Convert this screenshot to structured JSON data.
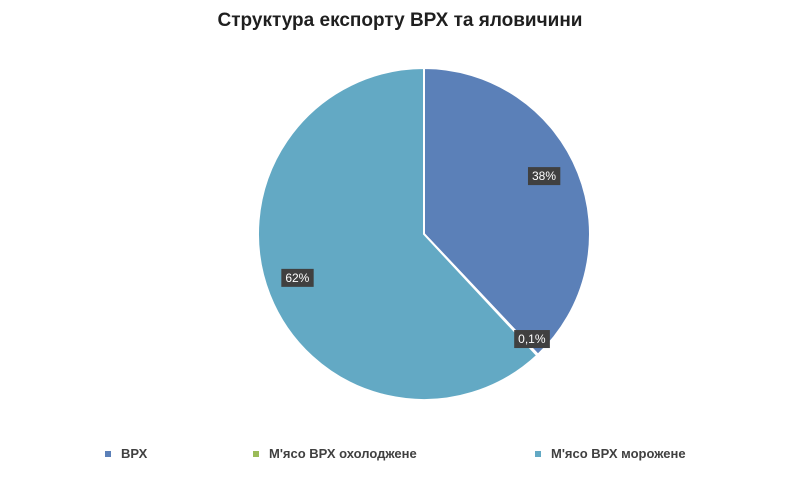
{
  "chart_data": {
    "type": "pie",
    "title": "Структура експорту ВРХ та яловичини",
    "categories": [
      "ВРХ",
      "М'ясо ВРХ охолоджене",
      "М'ясо ВРХ морожене"
    ],
    "values": [
      38,
      0.1,
      62
    ],
    "data_labels": [
      "38%",
      "0,1%",
      "62%"
    ],
    "colors": [
      "#5B80B8",
      "#9BBB59",
      "#63A9C4"
    ],
    "legend_position": "bottom"
  }
}
